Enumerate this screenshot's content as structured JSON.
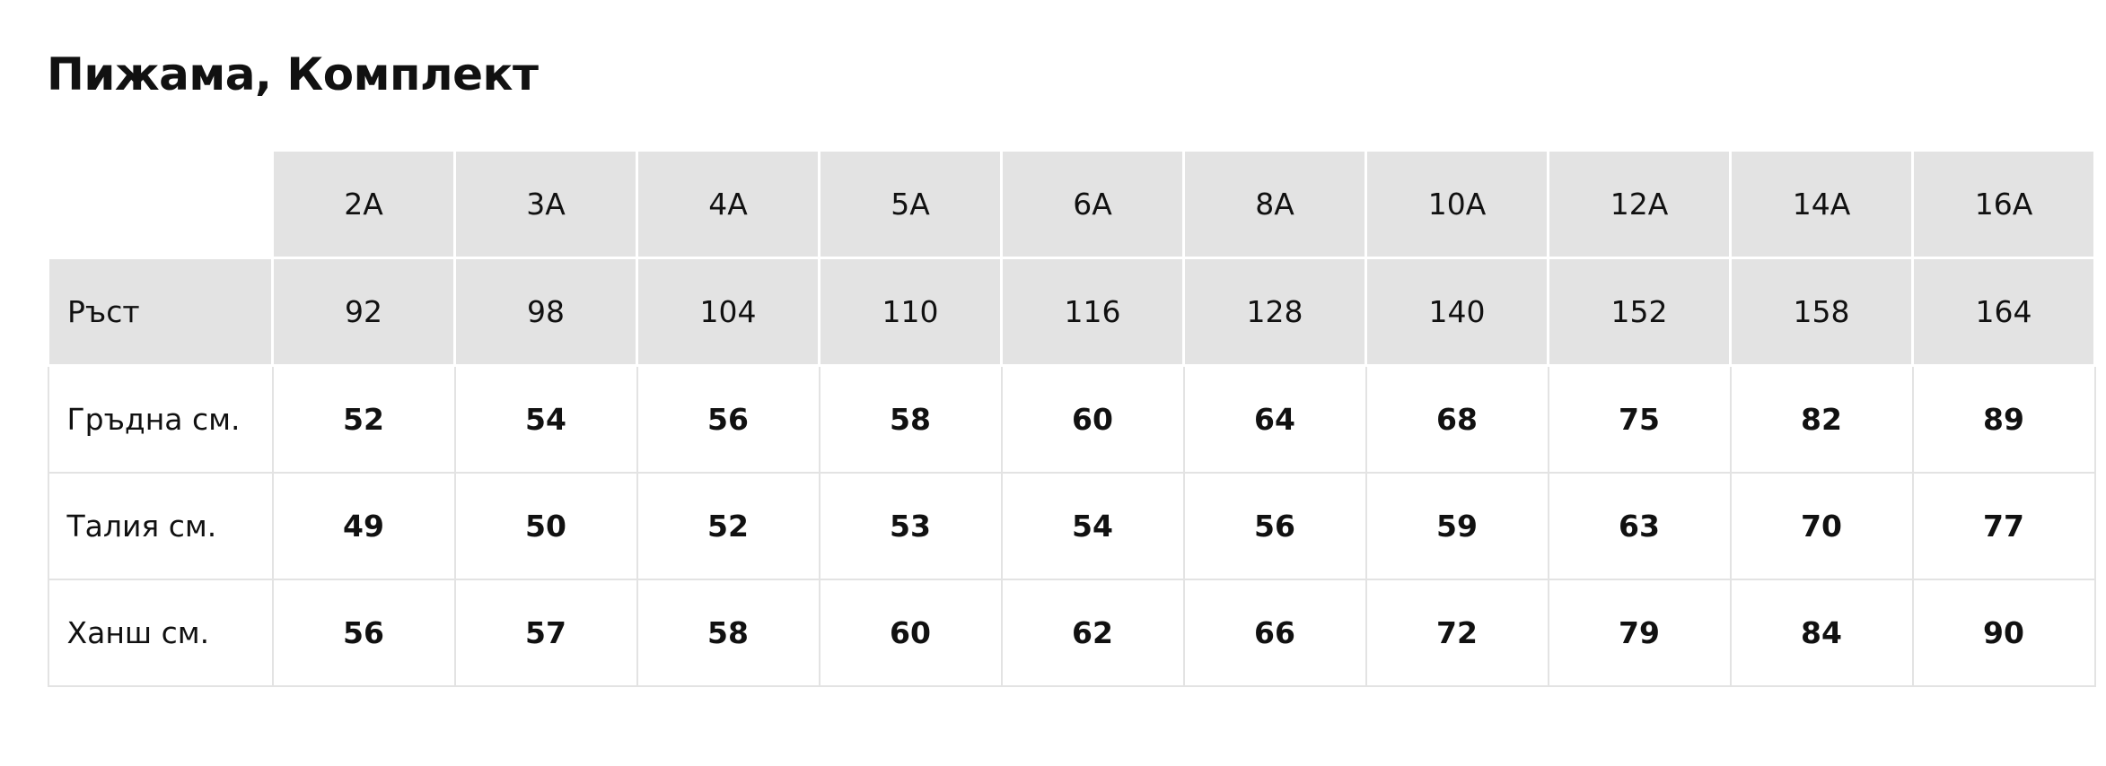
{
  "header": {
    "title": "Пижама, Комплект"
  },
  "table": {
    "columns": [
      "2A",
      "3A",
      "4A",
      "5A",
      "6A",
      "8A",
      "10A",
      "12A",
      "14A",
      "16A"
    ],
    "rows": [
      [
        "Ръст",
        92,
        98,
        104,
        110,
        116,
        128,
        140,
        152,
        158,
        164
      ],
      [
        "Гръдна см.",
        52,
        54,
        56,
        58,
        60,
        64,
        68,
        75,
        82,
        89
      ],
      [
        "Талия см.",
        49,
        50,
        52,
        53,
        54,
        56,
        59,
        63,
        70,
        77
      ],
      [
        "Ханш см.",
        56,
        57,
        58,
        60,
        62,
        66,
        72,
        79,
        84,
        90
      ]
    ]
  }
}
